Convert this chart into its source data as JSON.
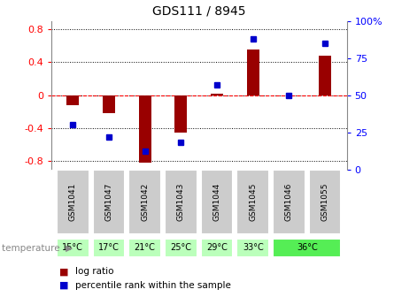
{
  "title": "GDS111 / 8945",
  "samples": [
    "GSM1041",
    "GSM1047",
    "GSM1042",
    "GSM1043",
    "GSM1044",
    "GSM1045",
    "GSM1046",
    "GSM1055"
  ],
  "log_ratio": [
    -0.12,
    -0.22,
    -0.82,
    -0.45,
    0.02,
    0.55,
    0.0,
    0.48
  ],
  "percentile": [
    30,
    22,
    12,
    18,
    57,
    88,
    50,
    85
  ],
  "light_green": "#bbffbb",
  "dark_green": "#55ee55",
  "sample_bg": "#cccccc",
  "bar_color": "#990000",
  "dot_color": "#0000cc",
  "ylim_left": [
    -0.9,
    0.9
  ],
  "ylim_right": [
    0,
    100
  ],
  "yticks_left": [
    -0.8,
    -0.4,
    0.0,
    0.4,
    0.8
  ],
  "yticks_right": [
    0,
    25,
    50,
    75,
    100
  ],
  "bar_width": 0.35,
  "temp_groups": [
    {
      "start": 0,
      "end": 0,
      "label": "15°C",
      "dark": false
    },
    {
      "start": 1,
      "end": 1,
      "label": "17°C",
      "dark": false
    },
    {
      "start": 2,
      "end": 2,
      "label": "21°C",
      "dark": false
    },
    {
      "start": 3,
      "end": 3,
      "label": "25°C",
      "dark": false
    },
    {
      "start": 4,
      "end": 4,
      "label": "29°C",
      "dark": false
    },
    {
      "start": 5,
      "end": 5,
      "label": "33°C",
      "dark": false
    },
    {
      "start": 6,
      "end": 7,
      "label": "36°C",
      "dark": true
    }
  ]
}
